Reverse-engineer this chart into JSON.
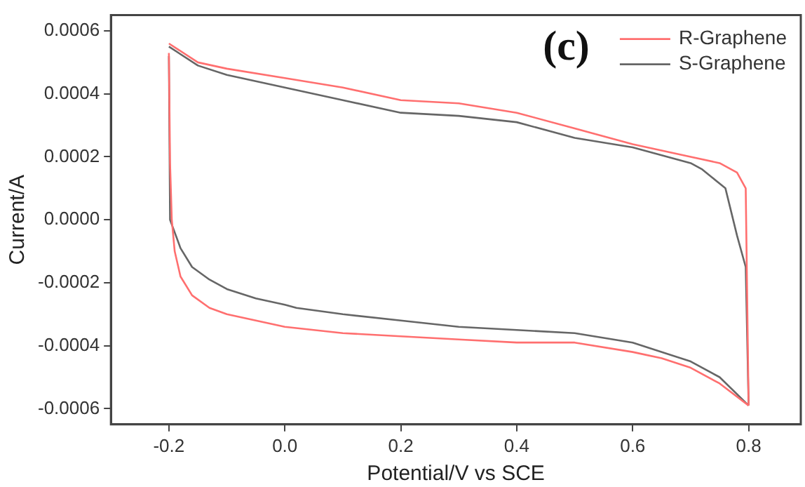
{
  "chart_data": {
    "type": "line",
    "xlabel": "Potential/V vs SCE",
    "ylabel": "Current/A",
    "annotations": [
      "(c)"
    ],
    "xlim": [
      -0.3,
      0.89
    ],
    "ylim": [
      -0.00065,
      0.00065
    ],
    "xticks": [
      -0.2,
      {
        "value": 0,
        "label": "0.0"
      },
      0.2,
      0.4,
      0.6,
      0.8
    ],
    "yticks": [
      -0.0006,
      -0.0004,
      -0.0002,
      {
        "value": 0,
        "label": "0.0000"
      },
      0.0002,
      0.0004,
      0.0006
    ],
    "grid": false,
    "legend": "top right",
    "marker": "none",
    "line_style": "solid",
    "series": [
      {
        "name": "R-Graphene",
        "color": "#ff6f6f",
        "x": [
          -0.2,
          -0.15,
          -0.1,
          0.0,
          0.1,
          0.2,
          0.3,
          0.4,
          0.5,
          0.6,
          0.7,
          0.75,
          0.78,
          0.795,
          0.8
        ],
        "values": [
          0.00056,
          0.0005,
          0.00048,
          0.00045,
          0.00042,
          0.00038,
          0.00037,
          0.00034,
          0.00029,
          0.00024,
          0.0002,
          0.00018,
          0.00015,
          0.0001,
          -0.00059
        ]
      },
      {
        "color": "#ff6f6f",
        "x": [
          -0.2,
          -0.198,
          -0.195,
          -0.19,
          -0.18,
          -0.16,
          -0.13,
          -0.1,
          -0.05,
          0.0,
          0.1,
          0.2,
          0.3,
          0.4,
          0.5,
          0.6,
          0.65,
          0.7,
          0.75,
          0.8
        ],
        "values": [
          0.00053,
          0.00018,
          0.0,
          -0.0001,
          -0.00018,
          -0.00024,
          -0.00028,
          -0.0003,
          -0.00032,
          -0.00034,
          -0.00036,
          -0.00037,
          -0.00038,
          -0.00039,
          -0.00039,
          -0.00042,
          -0.00044,
          -0.00047,
          -0.00052,
          -0.00059
        ]
      },
      {
        "name": "S-Graphene",
        "color": "#666666",
        "x": [
          -0.2,
          -0.15,
          -0.1,
          0.0,
          0.1,
          0.2,
          0.3,
          0.4,
          0.5,
          0.6,
          0.7,
          0.72,
          0.76,
          0.78,
          0.795,
          0.8
        ],
        "values": [
          0.00055,
          0.00049,
          0.00046,
          0.00042,
          0.00038,
          0.00034,
          0.00033,
          0.00031,
          0.00026,
          0.00023,
          0.00018,
          0.00016,
          0.0001,
          -5e-05,
          -0.00015,
          -0.00059
        ]
      },
      {
        "color": "#666666",
        "x": [
          -0.2,
          -0.198,
          -0.19,
          -0.18,
          -0.16,
          -0.13,
          -0.1,
          -0.05,
          0.0,
          0.02,
          0.1,
          0.2,
          0.3,
          0.4,
          0.5,
          0.6,
          0.7,
          0.75,
          0.8
        ],
        "values": [
          0.00052,
          0.0,
          -4e-05,
          -9e-05,
          -0.00015,
          -0.00019,
          -0.00022,
          -0.00025,
          -0.00027,
          -0.00028,
          -0.0003,
          -0.00032,
          -0.00034,
          -0.00035,
          -0.00036,
          -0.00039,
          -0.00045,
          -0.0005,
          -0.00059
        ]
      }
    ]
  }
}
